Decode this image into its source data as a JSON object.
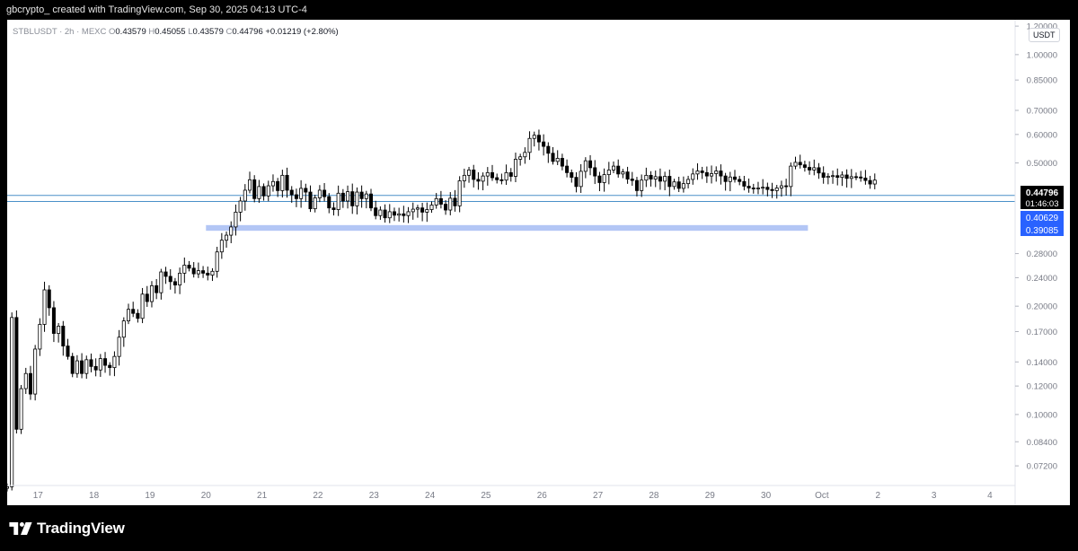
{
  "header": {
    "attribution": "gbcrypto_ created with TradingView.com, Sep 30, 2025 04:13 UTC-4"
  },
  "symbol_bar": {
    "symbol": "STBLUSDT · 2h · MEXC",
    "open_label": "O",
    "open": "0.43579",
    "high_label": "H",
    "high": "0.45055",
    "low_label": "L",
    "low": "0.43579",
    "close_label": "C",
    "close": "0.44796",
    "change": "+0.01219 (+2.80%)"
  },
  "currency": "USDT",
  "colors": {
    "up_candle": "#ffffff",
    "down_candle": "#000000",
    "candle_outline": "#000000",
    "support_line": "#4a90c8",
    "zone": "#b3c6f5",
    "price_tag_last": "#000000",
    "price_tag_level": "#2962ff"
  },
  "price_tags": {
    "last": "0.44796",
    "countdown": "01:46:03",
    "level_1": "0.40629",
    "level_2": "0.39085"
  },
  "chart_data": {
    "type": "candlestick",
    "symbol": "STBLUSDT",
    "timeframe": "2h",
    "exchange": "MEXC",
    "y_scale": "log",
    "ylim": [
      0.0635,
      1.25
    ],
    "y_ticks": [
      "1.20000",
      "1.00000",
      "0.85000",
      "0.70000",
      "0.60000",
      "0.50000",
      "0.28000",
      "0.24000",
      "0.20000",
      "0.17000",
      "0.14000",
      "0.12000",
      "0.10000",
      "0.08400",
      "0.07200"
    ],
    "x_ticks": [
      "17",
      "18",
      "19",
      "20",
      "21",
      "22",
      "23",
      "24",
      "25",
      "26",
      "27",
      "28",
      "29",
      "30",
      "Oct",
      "2",
      "3",
      "4"
    ],
    "x_ticks_day_index": [
      0,
      1,
      2,
      3,
      4,
      5,
      6,
      7,
      8,
      9,
      10,
      11,
      12,
      13,
      14,
      15,
      16,
      17
    ],
    "xlim_days": [
      -0.55,
      17.45
    ],
    "horizontal_lines": [
      {
        "price": 0.40629
      },
      {
        "price": 0.39085
      }
    ],
    "zones": [
      {
        "price_low": 0.324,
        "price_high": 0.336,
        "from_day": 3.0,
        "to_day": 13.75
      }
    ],
    "candle_start_day": -0.55,
    "candle_step_days": 0.0833,
    "closes": [
      0.063,
      0.186,
      0.091,
      0.118,
      0.13,
      0.114,
      0.152,
      0.178,
      0.222,
      0.198,
      0.168,
      0.176,
      0.155,
      0.145,
      0.13,
      0.141,
      0.13,
      0.142,
      0.136,
      0.133,
      0.143,
      0.137,
      0.135,
      0.145,
      0.164,
      0.182,
      0.196,
      0.191,
      0.185,
      0.216,
      0.206,
      0.228,
      0.218,
      0.249,
      0.242,
      0.234,
      0.229,
      0.247,
      0.26,
      0.255,
      0.246,
      0.251,
      0.247,
      0.244,
      0.25,
      0.283,
      0.305,
      0.315,
      0.332,
      0.365,
      0.392,
      0.42,
      0.449,
      0.398,
      0.43,
      0.405,
      0.432,
      0.444,
      0.419,
      0.462,
      0.42,
      0.408,
      0.398,
      0.425,
      0.415,
      0.373,
      0.4,
      0.42,
      0.403,
      0.375,
      0.371,
      0.412,
      0.392,
      0.416,
      0.38,
      0.415,
      0.398,
      0.41,
      0.375,
      0.357,
      0.37,
      0.352,
      0.366,
      0.358,
      0.361,
      0.357,
      0.366,
      0.372,
      0.375,
      0.365,
      0.371,
      0.382,
      0.398,
      0.384,
      0.37,
      0.399,
      0.38,
      0.446,
      0.462,
      0.478,
      0.45,
      0.445,
      0.46,
      0.47,
      0.455,
      0.449,
      0.448,
      0.47,
      0.459,
      0.512,
      0.52,
      0.535,
      0.585,
      0.597,
      0.572,
      0.556,
      0.532,
      0.505,
      0.515,
      0.49,
      0.47,
      0.456,
      0.43,
      0.474,
      0.507,
      0.485,
      0.46,
      0.441,
      0.464,
      0.478,
      0.49,
      0.466,
      0.472,
      0.451,
      0.447,
      0.419,
      0.448,
      0.462,
      0.451,
      0.458,
      0.445,
      0.459,
      0.43,
      0.443,
      0.425,
      0.438,
      0.45,
      0.466,
      0.475,
      0.47,
      0.46,
      0.467,
      0.475,
      0.46,
      0.444,
      0.457,
      0.45,
      0.444,
      0.431,
      0.426,
      0.425,
      0.426,
      0.428,
      0.422,
      0.419,
      0.426,
      0.432,
      0.43,
      0.49,
      0.502,
      0.494,
      0.486,
      0.478,
      0.485,
      0.469,
      0.456,
      0.459,
      0.461,
      0.456,
      0.463,
      0.453,
      0.458,
      0.457,
      0.454,
      0.447,
      0.437,
      0.448
    ]
  }
}
